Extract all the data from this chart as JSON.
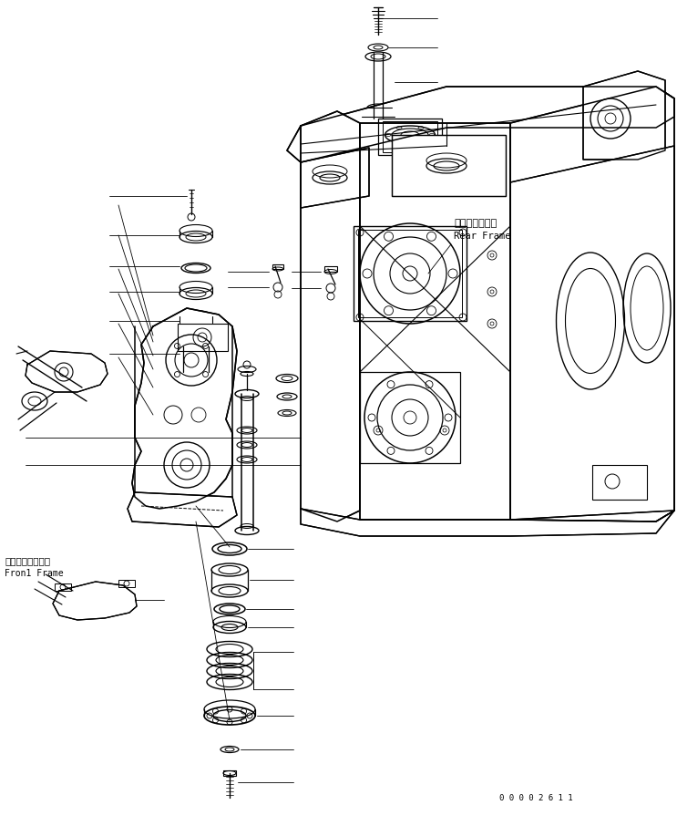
{
  "background_color": "#ffffff",
  "line_color": "#000000",
  "text_color": "#000000",
  "label_rear_frame_jp": "リヤーフレーム",
  "label_rear_frame_en": "Rear Frame",
  "label_front_frame_jp": "フロントフレーム",
  "label_front_frame_en": "Fron1 Frame",
  "part_number": "0 0 0 0 2 6 1 1",
  "fig_width": 7.43,
  "fig_height": 9.06,
  "dpi": 100
}
